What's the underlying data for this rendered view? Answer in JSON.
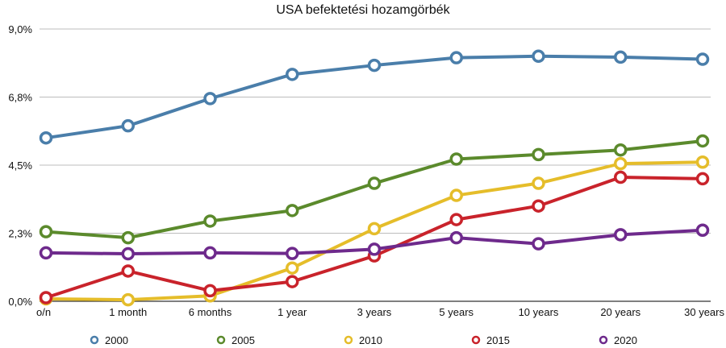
{
  "chart_data": {
    "type": "line",
    "title": "USA befektetési hozamgörbék",
    "categories": [
      "o/n",
      "1 month",
      "6 months",
      "1 year",
      "3 years",
      "5 years",
      "10 years",
      "20 years",
      "30 years"
    ],
    "y_ticks": [
      "0,0%",
      "2,3%",
      "4,5%",
      "6,8%",
      "9,0%"
    ],
    "ylim": [
      0,
      9.0
    ],
    "grid": "horizontal",
    "legend_placement": "bottom",
    "series": [
      {
        "name": "2000",
        "color": "#4a7eaa",
        "values": [
          5.4,
          5.8,
          6.7,
          7.5,
          7.8,
          8.05,
          8.1,
          8.07,
          8.0
        ]
      },
      {
        "name": "2005",
        "color": "#5b8a2c",
        "values": [
          2.3,
          2.1,
          2.65,
          3.0,
          3.9,
          4.7,
          4.85,
          5.0,
          5.3
        ]
      },
      {
        "name": "2010",
        "color": "#e5bd2a",
        "values": [
          0.08,
          0.05,
          0.18,
          1.1,
          2.4,
          3.5,
          3.9,
          4.55,
          4.6
        ]
      },
      {
        "name": "2015",
        "color": "#c9232b",
        "values": [
          0.12,
          1.0,
          0.35,
          0.65,
          1.5,
          2.7,
          3.15,
          4.1,
          4.05
        ]
      },
      {
        "name": "2020",
        "color": "#6e2a8c",
        "values": [
          1.6,
          1.57,
          1.6,
          1.58,
          1.72,
          2.1,
          1.9,
          2.2,
          2.35
        ]
      }
    ]
  }
}
